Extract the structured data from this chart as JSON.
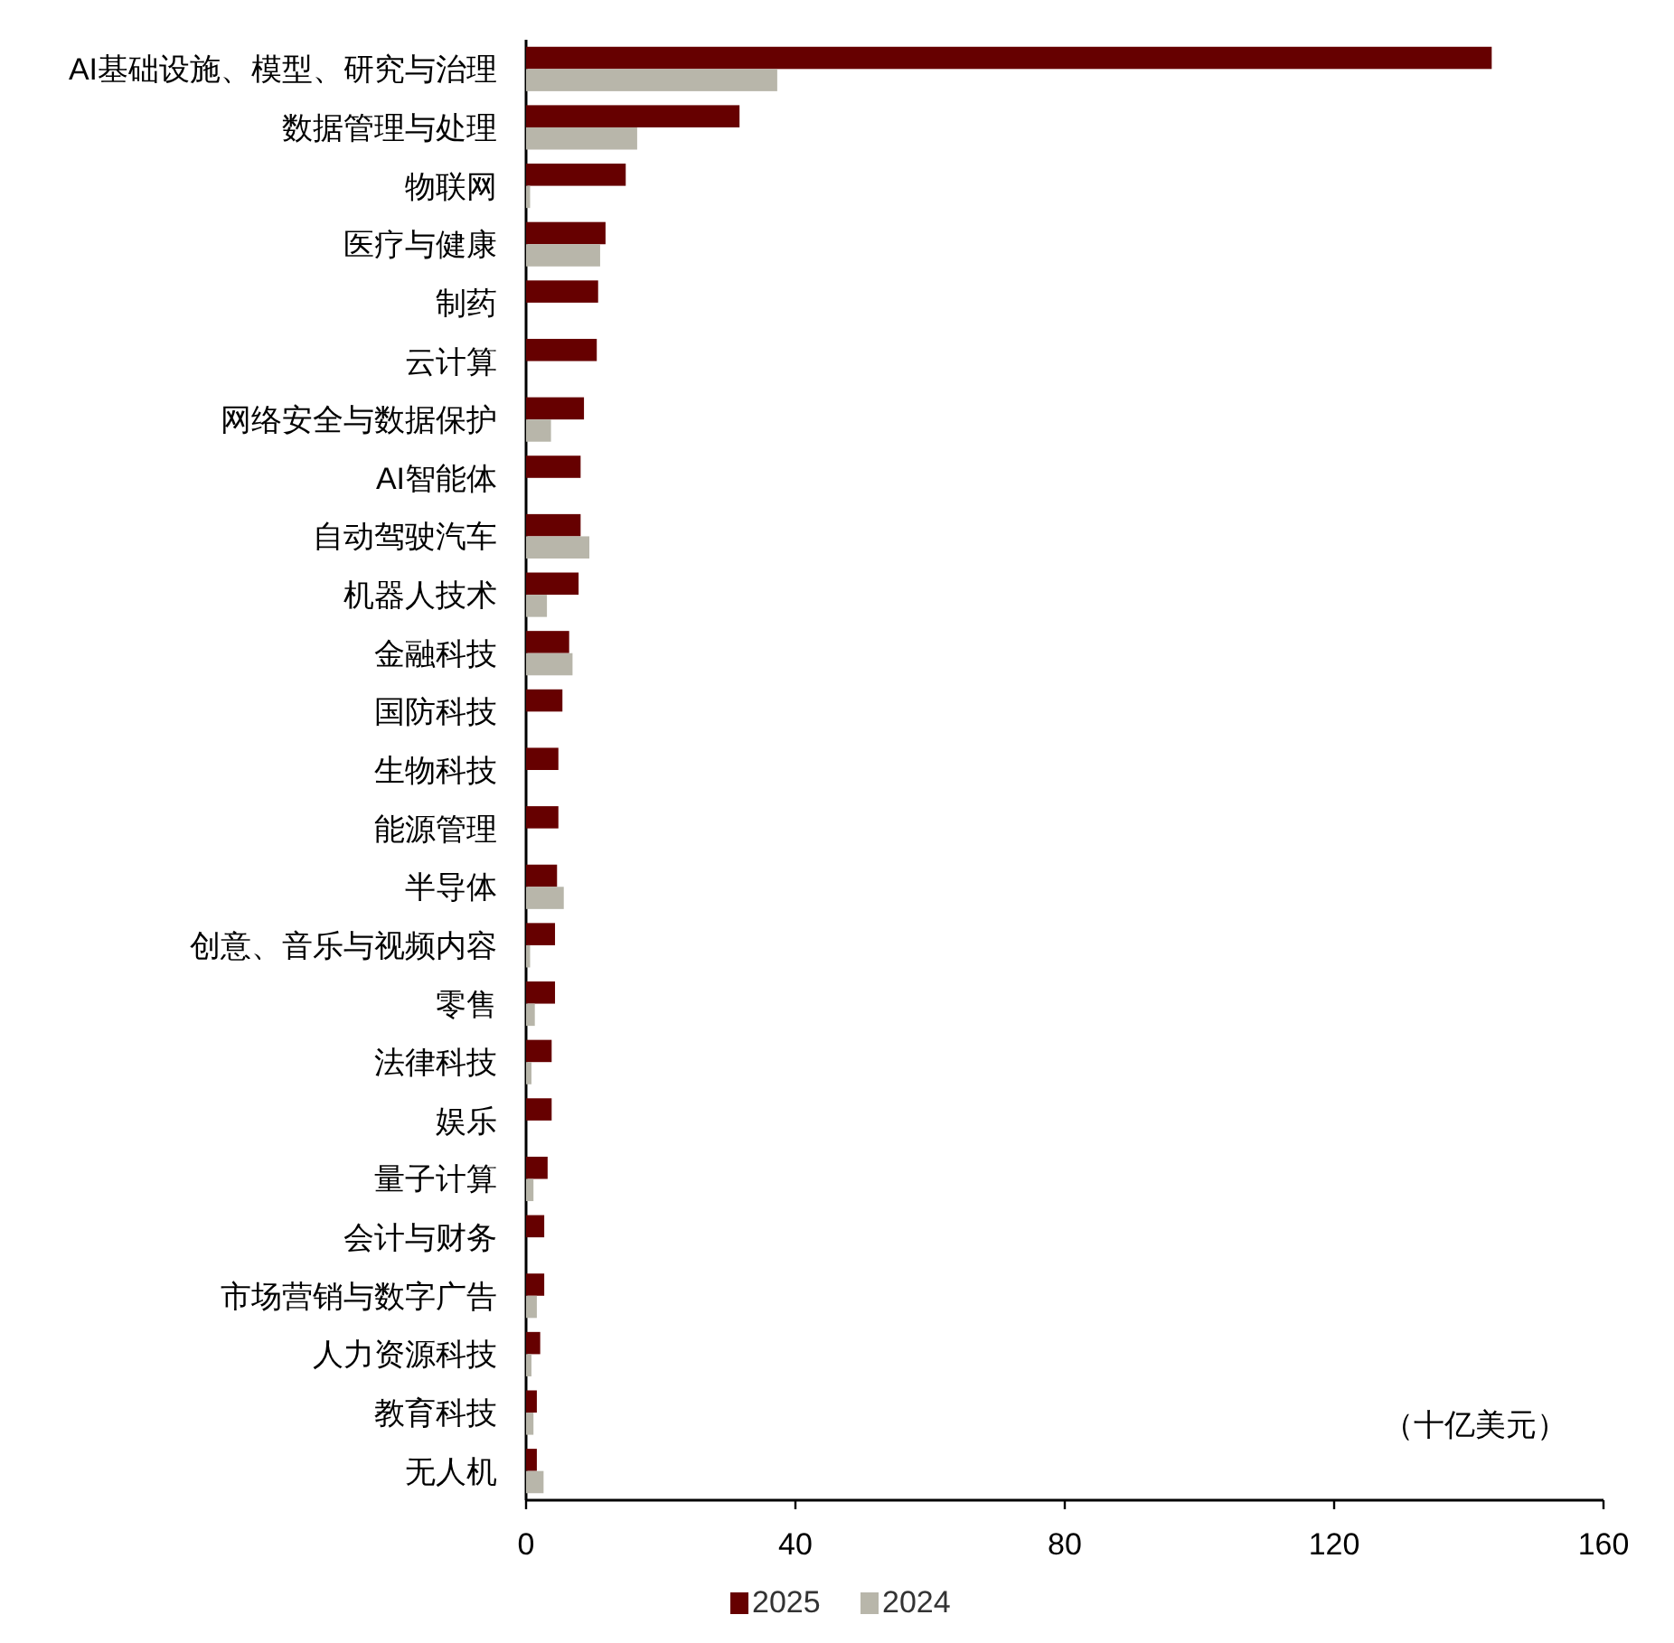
{
  "chart_data": {
    "type": "bar",
    "orientation": "horizontal",
    "categories": [
      "AI基础设施、模型、研究与治理",
      "数据管理与处理",
      "物联网",
      "医疗与健康",
      "制药",
      "云计算",
      "网络安全与数据保护",
      "AI智能体",
      "自动驾驶汽车",
      "机器人技术",
      "金融科技",
      "国防科技",
      "生物科技",
      "能源管理",
      "半导体",
      "创意、音乐与视频内容",
      "零售",
      "法律科技",
      "娱乐",
      "量子计算",
      "会计与财务",
      "市场营销与数字广告",
      "人力资源科技",
      "教育科技",
      "无人机"
    ],
    "series": [
      {
        "name": "2025",
        "color": "#660000",
        "values": [
          143.4,
          31.7,
          14.8,
          11.8,
          10.7,
          10.5,
          8.6,
          8.1,
          8.1,
          7.8,
          6.4,
          5.4,
          4.8,
          4.8,
          4.6,
          4.3,
          4.3,
          3.8,
          3.8,
          3.2,
          2.7,
          2.7,
          2.1,
          1.6,
          1.6
        ]
      },
      {
        "name": "2024",
        "color": "#b8b6aa",
        "values": [
          37.3,
          16.5,
          0.6,
          11.0,
          null,
          null,
          3.7,
          null,
          9.4,
          3.1,
          6.9,
          null,
          null,
          null,
          5.6,
          0.6,
          1.3,
          0.8,
          null,
          1.1,
          null,
          1.6,
          0.8,
          1.1,
          2.6
        ]
      }
    ],
    "xlim": [
      0,
      160
    ],
    "xticks": [
      0,
      40,
      80,
      120,
      160
    ],
    "annotations": [
      "（十亿美元）"
    ],
    "legend": "bottom"
  }
}
